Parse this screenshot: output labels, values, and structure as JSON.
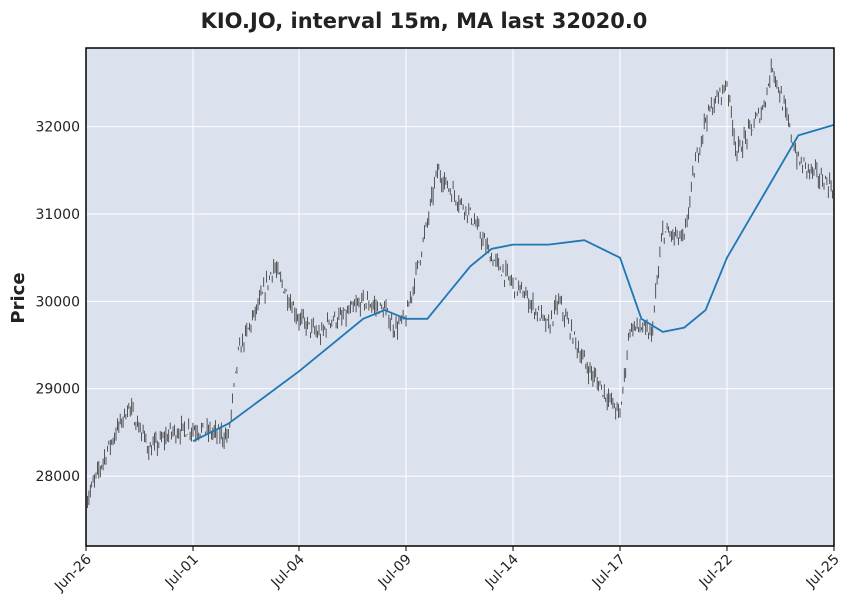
{
  "chart_data": {
    "type": "candlestick",
    "title": "KIO.JO, interval 15m, MA last 32020.0",
    "ylabel": "Price",
    "xlabel": "",
    "ylim": [
      27200,
      32900
    ],
    "grid": true,
    "legend": "none",
    "x_tick_labels": [
      "Jun-26",
      "Jul-01",
      "Jul-04",
      "Jul-09",
      "Jul-14",
      "Jul-17",
      "Jul-22",
      "Jul-25"
    ],
    "y_ticks": [
      28000,
      29000,
      30000,
      31000,
      32000
    ],
    "colors": {
      "background": "#dce1ee",
      "candle": "#333333",
      "ma": "#1f77b4",
      "grid": "#ffffff"
    },
    "series": [
      {
        "kind": "price",
        "x": [
          "Jun-26",
          "Jun-27",
          "Jun-28",
          "Jun-29",
          "Jun-30",
          "Jul-01",
          "Jul-02",
          "Jul-02",
          "Jul-03",
          "Jul-03",
          "Jul-04",
          "Jul-05",
          "Jul-05",
          "Jul-06",
          "Jul-07",
          "Jul-08",
          "Jul-08",
          "Jul-09",
          "Jul-10",
          "Jul-10",
          "Jul-11",
          "Jul-12",
          "Jul-13",
          "Jul-14",
          "Jul-14",
          "Jul-15",
          "Jul-15",
          "Jul-16",
          "Jul-17",
          "Jul-17",
          "Jul-18",
          "Jul-18",
          "Jul-19",
          "Jul-20",
          "Jul-20",
          "Jul-21",
          "Jul-22",
          "Jul-22",
          "Jul-23",
          "Jul-23",
          "Jul-24",
          "Jul-25"
        ],
        "values": [
          27700,
          28300,
          28800,
          28300,
          28500,
          28550,
          28450,
          29400,
          30100,
          30400,
          29800,
          29600,
          29800,
          29800,
          30000,
          29900,
          29700,
          29800,
          30900,
          31500,
          31300,
          31000,
          30500,
          30200,
          30100,
          29700,
          30000,
          29300,
          28700,
          29700,
          29700,
          29600,
          30800,
          30700,
          31500,
          32100,
          32500,
          31700,
          32200,
          32700,
          31600,
          31300
        ]
      },
      {
        "kind": "ma",
        "x": [
          "Jul-01",
          "Jul-02",
          "Jul-03",
          "Jul-04",
          "Jul-05",
          "Jul-06",
          "Jul-07",
          "Jul-08",
          "Jul-09",
          "Jul-10",
          "Jul-11",
          "Jul-12",
          "Jul-13",
          "Jul-14",
          "Jul-15",
          "Jul-16",
          "Jul-17",
          "Jul-18",
          "Jul-19",
          "Jul-20",
          "Jul-21",
          "Jul-22",
          "Jul-23",
          "Jul-24",
          "Jul-25"
        ],
        "values": [
          28400,
          28600,
          28900,
          29200,
          29400,
          29600,
          29800,
          29900,
          29800,
          29800,
          30100,
          30400,
          30600,
          30650,
          30650,
          30700,
          30500,
          29800,
          29650,
          29700,
          29900,
          30500,
          31200,
          31900,
          32020
        ]
      }
    ]
  }
}
